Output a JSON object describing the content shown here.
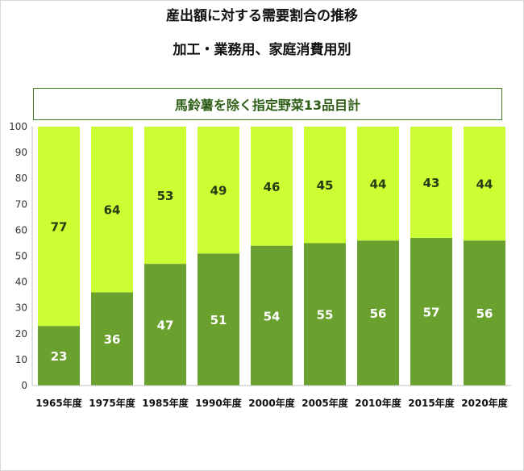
{
  "chart_data": {
    "type": "bar",
    "stacked": true,
    "title": "産出額に対する需要割合の推移",
    "subtitle": "加工・業務用、家庭消費用別",
    "annotation": "馬鈴薯を除く指定野菜13品目計",
    "categories": [
      "1965年度",
      "1975年度",
      "1985年度",
      "1990年度",
      "2000年度",
      "2005年度",
      "2010年度",
      "2015年度",
      "2020年度"
    ],
    "series": [
      {
        "values": [
          23,
          36,
          47,
          51,
          54,
          55,
          56,
          57,
          56
        ],
        "color": "#6aa02e",
        "label_color": "#ffffff"
      },
      {
        "values": [
          77,
          64,
          53,
          49,
          46,
          45,
          44,
          43,
          44
        ],
        "color": "#ccff33",
        "label_color": "#2a3a12"
      }
    ],
    "ylim": [
      0,
      100
    ],
    "yticks": [
      0,
      10,
      20,
      30,
      40,
      50,
      60,
      70,
      80,
      90,
      100
    ],
    "grid": false,
    "legend": "none"
  }
}
